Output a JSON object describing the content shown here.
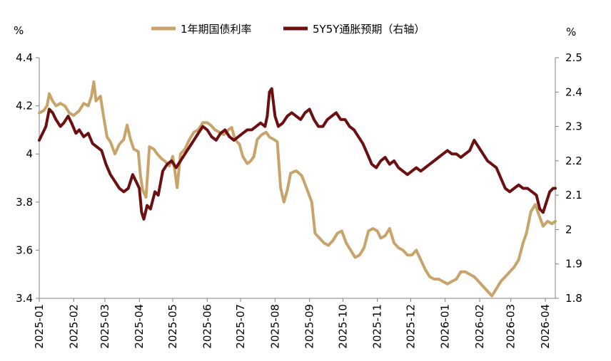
{
  "chart_data": {
    "type": "line",
    "left_unit": "%",
    "right_unit": "%",
    "legend": [
      {
        "series": 0,
        "position": "top-center"
      },
      {
        "series": 1,
        "position": "top-center"
      }
    ],
    "x": {
      "type": "date",
      "range": [
        "2025-01-01",
        "2026-04-10"
      ],
      "tick_labels": [
        "2025-01",
        "2025-02",
        "2025-03",
        "2025-04",
        "2025-05",
        "2025-06",
        "2025-07",
        "2025-08",
        "2025-09",
        "2025-10",
        "2025-11",
        "2025-12",
        "2026-01",
        "2026-02",
        "2026-03",
        "2026-04"
      ],
      "label_rotation": -90
    },
    "y_left": {
      "range": [
        3.4,
        4.4
      ],
      "ticks": [
        3.4,
        3.6,
        3.8,
        4,
        4.2,
        4.4
      ],
      "tick_labels": [
        "3.4",
        "3.6",
        "3.8",
        "4",
        "4.2",
        "4.4"
      ]
    },
    "y_right": {
      "range": [
        1.8,
        2.5
      ],
      "ticks": [
        1.8,
        1.9,
        2.0,
        2.1,
        2.2,
        2.3,
        2.4,
        2.5
      ],
      "tick_labels": [
        "1.8",
        "1.9",
        "2",
        "2.1",
        "2.2",
        "2.3",
        "2.4",
        "2.5"
      ]
    },
    "grid": false,
    "series": [
      {
        "name": "1年期国债利率",
        "axis": "left",
        "color": "#C9A46A",
        "points": [
          [
            "2025-01-01",
            4.17
          ],
          [
            "2025-01-05",
            4.18
          ],
          [
            "2025-01-08",
            4.2
          ],
          [
            "2025-01-10",
            4.25
          ],
          [
            "2025-01-13",
            4.22
          ],
          [
            "2025-01-16",
            4.2
          ],
          [
            "2025-01-20",
            4.21
          ],
          [
            "2025-01-24",
            4.2
          ],
          [
            "2025-01-28",
            4.17
          ],
          [
            "2025-02-01",
            4.16
          ],
          [
            "2025-02-06",
            4.18
          ],
          [
            "2025-02-10",
            4.21
          ],
          [
            "2025-02-14",
            4.2
          ],
          [
            "2025-02-17",
            4.24
          ],
          [
            "2025-02-19",
            4.3
          ],
          [
            "2025-02-21",
            4.22
          ],
          [
            "2025-02-25",
            4.24
          ],
          [
            "2025-02-28",
            4.15
          ],
          [
            "2025-03-03",
            4.07
          ],
          [
            "2025-03-06",
            4.05
          ],
          [
            "2025-03-10",
            4.0
          ],
          [
            "2025-03-14",
            4.04
          ],
          [
            "2025-03-18",
            4.06
          ],
          [
            "2025-03-21",
            4.12
          ],
          [
            "2025-03-24",
            4.06
          ],
          [
            "2025-03-27",
            4.02
          ],
          [
            "2025-03-31",
            4.01
          ],
          [
            "2025-04-02",
            3.91
          ],
          [
            "2025-04-04",
            3.85
          ],
          [
            "2025-04-07",
            3.82
          ],
          [
            "2025-04-10",
            4.03
          ],
          [
            "2025-04-14",
            4.02
          ],
          [
            "2025-04-17",
            4.0
          ],
          [
            "2025-04-21",
            3.98
          ],
          [
            "2025-04-24",
            3.97
          ],
          [
            "2025-04-28",
            3.95
          ],
          [
            "2025-05-01",
            3.99
          ],
          [
            "2025-05-05",
            3.86
          ],
          [
            "2025-05-08",
            4.0
          ],
          [
            "2025-05-12",
            4.02
          ],
          [
            "2025-05-16",
            4.06
          ],
          [
            "2025-05-20",
            4.09
          ],
          [
            "2025-05-24",
            4.1
          ],
          [
            "2025-05-28",
            4.13
          ],
          [
            "2025-06-01",
            4.13
          ],
          [
            "2025-06-04",
            4.12
          ],
          [
            "2025-06-08",
            4.1
          ],
          [
            "2025-06-12",
            4.09
          ],
          [
            "2025-06-16",
            4.08
          ],
          [
            "2025-06-20",
            4.1
          ],
          [
            "2025-06-23",
            4.11
          ],
          [
            "2025-06-26",
            4.06
          ],
          [
            "2025-06-30",
            4.04
          ],
          [
            "2025-07-03",
            3.99
          ],
          [
            "2025-07-07",
            3.96
          ],
          [
            "2025-07-10",
            3.97
          ],
          [
            "2025-07-13",
            3.99
          ],
          [
            "2025-07-16",
            4.06
          ],
          [
            "2025-07-20",
            4.08
          ],
          [
            "2025-07-24",
            4.09
          ],
          [
            "2025-07-27",
            4.07
          ],
          [
            "2025-07-31",
            4.06
          ],
          [
            "2025-08-03",
            4.05
          ],
          [
            "2025-08-06",
            3.86
          ],
          [
            "2025-08-09",
            3.8
          ],
          [
            "2025-08-12",
            3.85
          ],
          [
            "2025-08-15",
            3.92
          ],
          [
            "2025-08-20",
            3.93
          ],
          [
            "2025-08-25",
            3.91
          ],
          [
            "2025-08-30",
            3.85
          ],
          [
            "2025-09-03",
            3.8
          ],
          [
            "2025-09-06",
            3.67
          ],
          [
            "2025-09-10",
            3.65
          ],
          [
            "2025-09-14",
            3.63
          ],
          [
            "2025-09-18",
            3.62
          ],
          [
            "2025-09-22",
            3.64
          ],
          [
            "2025-09-26",
            3.67
          ],
          [
            "2025-09-30",
            3.68
          ],
          [
            "2025-10-04",
            3.63
          ],
          [
            "2025-10-08",
            3.6
          ],
          [
            "2025-10-12",
            3.57
          ],
          [
            "2025-10-16",
            3.58
          ],
          [
            "2025-10-20",
            3.61
          ],
          [
            "2025-10-24",
            3.68
          ],
          [
            "2025-10-28",
            3.69
          ],
          [
            "2025-11-01",
            3.68
          ],
          [
            "2025-11-04",
            3.65
          ],
          [
            "2025-11-08",
            3.66
          ],
          [
            "2025-11-12",
            3.69
          ],
          [
            "2025-11-16",
            3.63
          ],
          [
            "2025-11-20",
            3.61
          ],
          [
            "2025-11-24",
            3.6
          ],
          [
            "2025-11-28",
            3.58
          ],
          [
            "2025-12-02",
            3.58
          ],
          [
            "2025-12-06",
            3.6
          ],
          [
            "2025-12-10",
            3.56
          ],
          [
            "2025-12-14",
            3.52
          ],
          [
            "2025-12-18",
            3.49
          ],
          [
            "2025-12-22",
            3.48
          ],
          [
            "2025-12-26",
            3.48
          ],
          [
            "2025-12-30",
            3.47
          ],
          [
            "2026-01-03",
            3.46
          ],
          [
            "2026-01-07",
            3.47
          ],
          [
            "2026-01-11",
            3.48
          ],
          [
            "2026-01-15",
            3.51
          ],
          [
            "2026-01-19",
            3.51
          ],
          [
            "2026-01-23",
            3.5
          ],
          [
            "2026-01-27",
            3.49
          ],
          [
            "2026-01-31",
            3.47
          ],
          [
            "2026-02-04",
            3.45
          ],
          [
            "2026-02-08",
            3.43
          ],
          [
            "2026-02-12",
            3.41
          ],
          [
            "2026-02-16",
            3.44
          ],
          [
            "2026-02-20",
            3.47
          ],
          [
            "2026-02-24",
            3.49
          ],
          [
            "2026-02-28",
            3.51
          ],
          [
            "2026-03-04",
            3.53
          ],
          [
            "2026-03-08",
            3.56
          ],
          [
            "2026-03-12",
            3.63
          ],
          [
            "2026-03-15",
            3.67
          ],
          [
            "2026-03-19",
            3.76
          ],
          [
            "2026-03-23",
            3.79
          ],
          [
            "2026-03-26",
            3.75
          ],
          [
            "2026-03-30",
            3.7
          ],
          [
            "2026-04-03",
            3.72
          ],
          [
            "2026-04-07",
            3.71
          ],
          [
            "2026-04-10",
            3.72
          ]
        ]
      },
      {
        "name": "5Y5Y通胀预期（右轴）",
        "axis": "right",
        "color": "#6B0F10",
        "points": [
          [
            "2025-01-01",
            2.26
          ],
          [
            "2025-01-04",
            2.28
          ],
          [
            "2025-01-07",
            2.3
          ],
          [
            "2025-01-10",
            2.35
          ],
          [
            "2025-01-13",
            2.34
          ],
          [
            "2025-01-16",
            2.32
          ],
          [
            "2025-01-20",
            2.3
          ],
          [
            "2025-01-23",
            2.31
          ],
          [
            "2025-01-27",
            2.33
          ],
          [
            "2025-01-30",
            2.31
          ],
          [
            "2025-02-03",
            2.28
          ],
          [
            "2025-02-06",
            2.29
          ],
          [
            "2025-02-10",
            2.27
          ],
          [
            "2025-02-14",
            2.28
          ],
          [
            "2025-02-18",
            2.25
          ],
          [
            "2025-02-22",
            2.24
          ],
          [
            "2025-02-26",
            2.23
          ],
          [
            "2025-03-02",
            2.19
          ],
          [
            "2025-03-06",
            2.16
          ],
          [
            "2025-03-10",
            2.14
          ],
          [
            "2025-03-14",
            2.12
          ],
          [
            "2025-03-18",
            2.11
          ],
          [
            "2025-03-22",
            2.12
          ],
          [
            "2025-03-26",
            2.16
          ],
          [
            "2025-03-29",
            2.14
          ],
          [
            "2025-04-01",
            2.12
          ],
          [
            "2025-04-03",
            2.05
          ],
          [
            "2025-04-05",
            2.03
          ],
          [
            "2025-04-08",
            2.07
          ],
          [
            "2025-04-11",
            2.06
          ],
          [
            "2025-04-15",
            2.11
          ],
          [
            "2025-04-18",
            2.1
          ],
          [
            "2025-04-22",
            2.17
          ],
          [
            "2025-04-26",
            2.19
          ],
          [
            "2025-04-30",
            2.2
          ],
          [
            "2025-05-04",
            2.18
          ],
          [
            "2025-05-08",
            2.2
          ],
          [
            "2025-05-12",
            2.22
          ],
          [
            "2025-05-16",
            2.24
          ],
          [
            "2025-05-20",
            2.26
          ],
          [
            "2025-05-24",
            2.28
          ],
          [
            "2025-05-28",
            2.3
          ],
          [
            "2025-06-01",
            2.29
          ],
          [
            "2025-06-05",
            2.27
          ],
          [
            "2025-06-09",
            2.26
          ],
          [
            "2025-06-13",
            2.28
          ],
          [
            "2025-06-17",
            2.29
          ],
          [
            "2025-06-21",
            2.27
          ],
          [
            "2025-06-25",
            2.26
          ],
          [
            "2025-06-29",
            2.27
          ],
          [
            "2025-07-03",
            2.28
          ],
          [
            "2025-07-07",
            2.29
          ],
          [
            "2025-07-11",
            2.29
          ],
          [
            "2025-07-15",
            2.3
          ],
          [
            "2025-07-19",
            2.31
          ],
          [
            "2025-07-23",
            2.3
          ],
          [
            "2025-07-25",
            2.33
          ],
          [
            "2025-07-27",
            2.4
          ],
          [
            "2025-07-29",
            2.41
          ],
          [
            "2025-08-01",
            2.33
          ],
          [
            "2025-08-04",
            2.3
          ],
          [
            "2025-08-08",
            2.31
          ],
          [
            "2025-08-12",
            2.33
          ],
          [
            "2025-08-16",
            2.34
          ],
          [
            "2025-08-20",
            2.33
          ],
          [
            "2025-08-24",
            2.32
          ],
          [
            "2025-08-28",
            2.34
          ],
          [
            "2025-09-01",
            2.35
          ],
          [
            "2025-09-05",
            2.32
          ],
          [
            "2025-09-09",
            2.3
          ],
          [
            "2025-09-13",
            2.3
          ],
          [
            "2025-09-17",
            2.32
          ],
          [
            "2025-09-21",
            2.33
          ],
          [
            "2025-09-25",
            2.34
          ],
          [
            "2025-09-29",
            2.32
          ],
          [
            "2025-10-03",
            2.32
          ],
          [
            "2025-10-07",
            2.3
          ],
          [
            "2025-10-11",
            2.29
          ],
          [
            "2025-10-15",
            2.27
          ],
          [
            "2025-10-19",
            2.25
          ],
          [
            "2025-10-23",
            2.22
          ],
          [
            "2025-10-27",
            2.19
          ],
          [
            "2025-10-31",
            2.18
          ],
          [
            "2025-11-04",
            2.2
          ],
          [
            "2025-11-08",
            2.21
          ],
          [
            "2025-11-12",
            2.19
          ],
          [
            "2025-11-16",
            2.2
          ],
          [
            "2025-11-20",
            2.18
          ],
          [
            "2025-11-24",
            2.17
          ],
          [
            "2025-11-28",
            2.16
          ],
          [
            "2025-12-02",
            2.17
          ],
          [
            "2025-12-06",
            2.18
          ],
          [
            "2025-12-10",
            2.17
          ],
          [
            "2025-12-14",
            2.18
          ],
          [
            "2025-12-18",
            2.19
          ],
          [
            "2025-12-22",
            2.2
          ],
          [
            "2025-12-26",
            2.21
          ],
          [
            "2025-12-30",
            2.22
          ],
          [
            "2026-01-03",
            2.23
          ],
          [
            "2026-01-07",
            2.22
          ],
          [
            "2026-01-11",
            2.22
          ],
          [
            "2026-01-15",
            2.21
          ],
          [
            "2026-01-19",
            2.22
          ],
          [
            "2026-01-23",
            2.23
          ],
          [
            "2026-01-27",
            2.26
          ],
          [
            "2026-01-31",
            2.24
          ],
          [
            "2026-02-04",
            2.22
          ],
          [
            "2026-02-08",
            2.2
          ],
          [
            "2026-02-12",
            2.19
          ],
          [
            "2026-02-16",
            2.18
          ],
          [
            "2026-02-20",
            2.15
          ],
          [
            "2026-02-24",
            2.12
          ],
          [
            "2026-02-28",
            2.11
          ],
          [
            "2026-03-04",
            2.12
          ],
          [
            "2026-03-08",
            2.13
          ],
          [
            "2026-03-12",
            2.12
          ],
          [
            "2026-03-16",
            2.12
          ],
          [
            "2026-03-20",
            2.11
          ],
          [
            "2026-03-24",
            2.1
          ],
          [
            "2026-03-27",
            2.06
          ],
          [
            "2026-03-30",
            2.05
          ],
          [
            "2026-04-02",
            2.08
          ],
          [
            "2026-04-05",
            2.11
          ],
          [
            "2026-04-08",
            2.12
          ],
          [
            "2026-04-10",
            2.12
          ]
        ]
      }
    ]
  }
}
